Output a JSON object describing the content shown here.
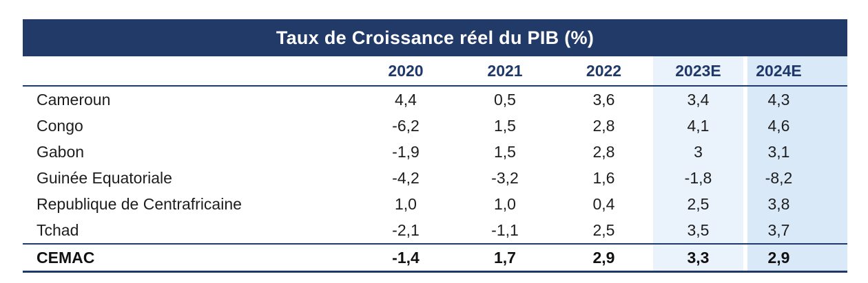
{
  "title": "Taux de Croissance réel du PIB (%)",
  "colors": {
    "navy": "#223a67",
    "navy-text": "#1e3969",
    "line": "#1e3969",
    "blue23": "#eaf2fb",
    "blue24": "#d9e9f8",
    "gap": "#ffffff",
    "body-text": "#1d1d1d"
  },
  "chart_data": {
    "type": "table",
    "title": "Taux de Croissance réel du PIB (%)",
    "columns": [
      "",
      "2020",
      "2021",
      "2022",
      "2023E",
      "2024E"
    ],
    "highlighted_columns": [
      "2023E",
      "2024E"
    ],
    "value_format": "comma-decimal, percent growth rates",
    "rows": [
      {
        "label": "Cameroun",
        "values": [
          "4,4",
          "0,5",
          "3,6",
          "3,4",
          "4,3"
        ]
      },
      {
        "label": "Congo",
        "values": [
          "-6,2",
          "1,5",
          "2,8",
          "4,1",
          "4,6"
        ]
      },
      {
        "label": "Gabon",
        "values": [
          "-1,9",
          "1,5",
          "2,8",
          "3",
          "3,1"
        ]
      },
      {
        "label": "Guinée Equatoriale",
        "values": [
          "-4,2",
          "-3,2",
          "1,6",
          "-1,8",
          "-8,2"
        ]
      },
      {
        "label": "Republique de Centrafricaine",
        "values": [
          "1,0",
          "1,0",
          "0,4",
          "2,5",
          "3,8"
        ]
      },
      {
        "label": "Tchad",
        "values": [
          "-2,1",
          "-1,1",
          "2,5",
          "3,5",
          "3,7"
        ]
      }
    ],
    "footer": {
      "label": "CEMAC",
      "values": [
        "-1,4",
        "1,7",
        "2,9",
        "3,3",
        "2,9"
      ]
    }
  }
}
